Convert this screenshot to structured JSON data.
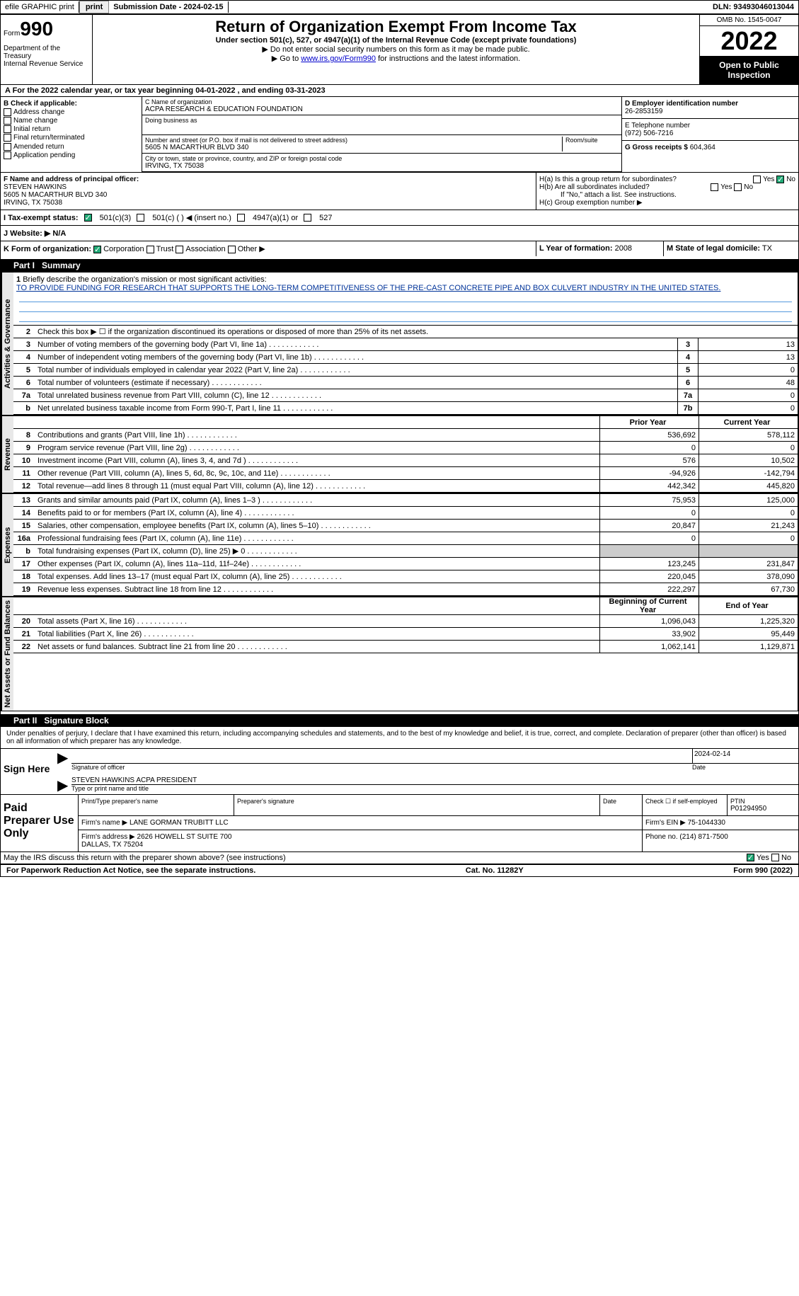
{
  "topbar": {
    "efile": "efile GRAPHIC print",
    "submission_label": "Submission Date - 2024-02-15",
    "dln_label": "DLN: 93493046013044"
  },
  "header": {
    "form_word": "Form",
    "form_num": "990",
    "title": "Return of Organization Exempt From Income Tax",
    "subtitle": "Under section 501(c), 527, or 4947(a)(1) of the Internal Revenue Code (except private foundations)",
    "note1": "Do not enter social security numbers on this form as it may be made public.",
    "note2_pre": "Go to ",
    "note2_link": "www.irs.gov/Form990",
    "note2_post": " for instructions and the latest information.",
    "dept": "Department of the Treasury\nInternal Revenue Service",
    "omb": "OMB No. 1545-0047",
    "year": "2022",
    "open": "Open to Public Inspection"
  },
  "period": {
    "text_a": "A For the 2022 calendar year, or tax year beginning ",
    "begin": "04-01-2022",
    "text_b": " , and ending ",
    "end": "03-31-2023"
  },
  "colB": {
    "label": "B Check if applicable:",
    "items": [
      "Address change",
      "Name change",
      "Initial return",
      "Final return/terminated",
      "Amended return",
      "Application pending"
    ]
  },
  "colC": {
    "name_lbl": "C Name of organization",
    "name": "ACPA RESEARCH & EDUCATION FOUNDATION",
    "dba_lbl": "Doing business as",
    "dba": "",
    "street_lbl": "Number and street (or P.O. box if mail is not delivered to street address)",
    "room_lbl": "Room/suite",
    "street": "5605 N MACARTHUR BLVD 340",
    "city_lbl": "City or town, state or province, country, and ZIP or foreign postal code",
    "city": "IRVING, TX  75038"
  },
  "colD": {
    "ein_lbl": "D Employer identification number",
    "ein": "26-2853159",
    "phone_lbl": "E Telephone number",
    "phone": "(972) 506-7216",
    "gross_lbl": "G Gross receipts $",
    "gross": "604,364"
  },
  "officer": {
    "f_lbl": "F Name and address of principal officer:",
    "name": "STEVEN HAWKINS",
    "addr1": "5605 N MACARTHUR BLVD 340",
    "addr2": "IRVING, TX  75038",
    "ha": "H(a) Is this a group return for subordinates?",
    "hb": "H(b) Are all subordinates included?",
    "hb_note": "If \"No,\" attach a list. See instructions.",
    "hc": "H(c) Group exemption number ▶",
    "yes": "Yes",
    "no": "No"
  },
  "status": {
    "i_lbl": "I Tax-exempt status:",
    "opt1": "501(c)(3)",
    "opt2": "501(c) (  ) ◀ (insert no.)",
    "opt3": "4947(a)(1) or",
    "opt4": "527"
  },
  "website": {
    "j_lbl": "J Website: ▶",
    "val": "N/A"
  },
  "kform": {
    "k_lbl": "K Form of organization:",
    "corp": "Corporation",
    "trust": "Trust",
    "assoc": "Association",
    "other": "Other ▶",
    "l_lbl": "L Year of formation:",
    "l_val": "2008",
    "m_lbl": "M State of legal domicile:",
    "m_val": "TX"
  },
  "part1": {
    "header": "Part I",
    "title": "Summary",
    "l1_lbl": "Briefly describe the organization's mission or most significant activities:",
    "l1_txt": "TO PROVIDE FUNDING FOR RESEARCH THAT SUPPORTS THE LONG-TERM COMPETITIVENESS OF THE PRE-CAST CONCRETE PIPE AND BOX CULVERT INDUSTRY IN THE UNITED STATES.",
    "l2": "Check this box ▶ ☐ if the organization discontinued its operations or disposed of more than 25% of its net assets.",
    "sections": {
      "gov": "Activities & Governance",
      "rev": "Revenue",
      "exp": "Expenses",
      "net": "Net Assets or Fund Balances"
    },
    "lines_single": [
      {
        "n": "3",
        "d": "Number of voting members of the governing body (Part VI, line 1a)",
        "b": "3",
        "v": "13"
      },
      {
        "n": "4",
        "d": "Number of independent voting members of the governing body (Part VI, line 1b)",
        "b": "4",
        "v": "13"
      },
      {
        "n": "5",
        "d": "Total number of individuals employed in calendar year 2022 (Part V, line 2a)",
        "b": "5",
        "v": "0"
      },
      {
        "n": "6",
        "d": "Total number of volunteers (estimate if necessary)",
        "b": "6",
        "v": "48"
      },
      {
        "n": "7a",
        "d": "Total unrelated business revenue from Part VIII, column (C), line 12",
        "b": "7a",
        "v": "0"
      },
      {
        "n": "b",
        "d": "Net unrelated business taxable income from Form 990-T, Part I, line 11",
        "b": "7b",
        "v": "0"
      }
    ],
    "col_hdr": {
      "prior": "Prior Year",
      "current": "Current Year",
      "begin": "Beginning of Current Year",
      "end": "End of Year"
    },
    "lines_rev": [
      {
        "n": "8",
        "d": "Contributions and grants (Part VIII, line 1h)",
        "p": "536,692",
        "c": "578,112"
      },
      {
        "n": "9",
        "d": "Program service revenue (Part VIII, line 2g)",
        "p": "0",
        "c": "0"
      },
      {
        "n": "10",
        "d": "Investment income (Part VIII, column (A), lines 3, 4, and 7d )",
        "p": "576",
        "c": "10,502"
      },
      {
        "n": "11",
        "d": "Other revenue (Part VIII, column (A), lines 5, 6d, 8c, 9c, 10c, and 11e)",
        "p": "-94,926",
        "c": "-142,794"
      },
      {
        "n": "12",
        "d": "Total revenue—add lines 8 through 11 (must equal Part VIII, column (A), line 12)",
        "p": "442,342",
        "c": "445,820"
      }
    ],
    "lines_exp": [
      {
        "n": "13",
        "d": "Grants and similar amounts paid (Part IX, column (A), lines 1–3 )",
        "p": "75,953",
        "c": "125,000"
      },
      {
        "n": "14",
        "d": "Benefits paid to or for members (Part IX, column (A), line 4)",
        "p": "0",
        "c": "0"
      },
      {
        "n": "15",
        "d": "Salaries, other compensation, employee benefits (Part IX, column (A), lines 5–10)",
        "p": "20,847",
        "c": "21,243"
      },
      {
        "n": "16a",
        "d": "Professional fundraising fees (Part IX, column (A), line 11e)",
        "p": "0",
        "c": "0"
      },
      {
        "n": "b",
        "d": "Total fundraising expenses (Part IX, column (D), line 25) ▶ 0",
        "p": "",
        "c": "",
        "shaded": true
      },
      {
        "n": "17",
        "d": "Other expenses (Part IX, column (A), lines 11a–11d, 11f–24e)",
        "p": "123,245",
        "c": "231,847"
      },
      {
        "n": "18",
        "d": "Total expenses. Add lines 13–17 (must equal Part IX, column (A), line 25)",
        "p": "220,045",
        "c": "378,090"
      },
      {
        "n": "19",
        "d": "Revenue less expenses. Subtract line 18 from line 12",
        "p": "222,297",
        "c": "67,730"
      }
    ],
    "lines_net": [
      {
        "n": "20",
        "d": "Total assets (Part X, line 16)",
        "p": "1,096,043",
        "c": "1,225,320"
      },
      {
        "n": "21",
        "d": "Total liabilities (Part X, line 26)",
        "p": "33,902",
        "c": "95,449"
      },
      {
        "n": "22",
        "d": "Net assets or fund balances. Subtract line 21 from line 20",
        "p": "1,062,141",
        "c": "1,129,871"
      }
    ]
  },
  "part2": {
    "header": "Part II",
    "title": "Signature Block",
    "intro": "Under penalties of perjury, I declare that I have examined this return, including accompanying schedules and statements, and to the best of my knowledge and belief, it is true, correct, and complete. Declaration of preparer (other than officer) is based on all information of which preparer has any knowledge.",
    "sign_here": "Sign Here",
    "sig_lbl": "Signature of officer",
    "date_lbl": "Date",
    "date_val": "2024-02-14",
    "name_lbl": "Type or print name and title",
    "name_val": "STEVEN HAWKINS ACPA PRESIDENT",
    "paid": "Paid Preparer Use Only",
    "prep_name_lbl": "Print/Type preparer's name",
    "prep_sig_lbl": "Preparer's signature",
    "prep_date_lbl": "Date",
    "self_emp": "Check ☐ if self-employed",
    "ptin_lbl": "PTIN",
    "ptin": "P01294950",
    "firm_name_lbl": "Firm's name ▶",
    "firm_name": "LANE GORMAN TRUBITT LLC",
    "firm_ein_lbl": "Firm's EIN ▶",
    "firm_ein": "75-1044330",
    "firm_addr_lbl": "Firm's address ▶",
    "firm_addr": "2626 HOWELL ST SUITE 700\nDALLAS, TX  75204",
    "firm_phone_lbl": "Phone no.",
    "firm_phone": "(214) 871-7500",
    "discuss": "May the IRS discuss this return with the preparer shown above? (see instructions)",
    "yes": "Yes",
    "no": "No"
  },
  "footer": {
    "pra": "For Paperwork Reduction Act Notice, see the separate instructions.",
    "cat": "Cat. No. 11282Y",
    "form": "Form 990 (2022)"
  }
}
